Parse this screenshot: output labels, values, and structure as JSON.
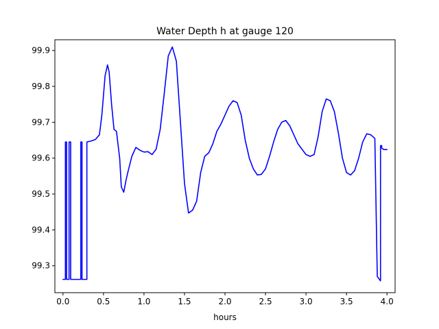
{
  "chart_data": {
    "type": "line",
    "title": "Water Depth h at gauge 120",
    "xlabel": "hours",
    "ylabel": "",
    "xlim": [
      -0.1,
      4.1
    ],
    "ylim": [
      99.225,
      99.93
    ],
    "xticks": [
      0.0,
      0.5,
      1.0,
      1.5,
      2.0,
      2.5,
      3.0,
      3.5,
      4.0
    ],
    "xtick_labels": [
      "0.0",
      "0.5",
      "1.0",
      "1.5",
      "2.0",
      "2.5",
      "3.0",
      "3.5",
      "4.0"
    ],
    "yticks": [
      99.3,
      99.4,
      99.5,
      99.6,
      99.7,
      99.8,
      99.9
    ],
    "ytick_labels": [
      "99.3",
      "99.4",
      "99.5",
      "99.6",
      "99.7",
      "99.8",
      "99.9"
    ],
    "grid": false,
    "legend": "none",
    "series": [
      {
        "color": "#0000ff",
        "x": [
          0.0,
          0.03,
          0.03,
          0.045,
          0.045,
          0.075,
          0.075,
          0.095,
          0.095,
          0.22,
          0.22,
          0.235,
          0.235,
          0.295,
          0.295,
          0.35,
          0.4,
          0.45,
          0.48,
          0.52,
          0.55,
          0.57,
          0.6,
          0.63,
          0.66,
          0.7,
          0.72,
          0.75,
          0.78,
          0.8,
          0.85,
          0.9,
          0.95,
          1.0,
          1.05,
          1.1,
          1.15,
          1.2,
          1.25,
          1.3,
          1.35,
          1.4,
          1.45,
          1.5,
          1.55,
          1.6,
          1.65,
          1.7,
          1.75,
          1.8,
          1.85,
          1.9,
          1.95,
          2.0,
          2.05,
          2.1,
          2.15,
          2.2,
          2.25,
          2.3,
          2.35,
          2.4,
          2.45,
          2.5,
          2.55,
          2.6,
          2.65,
          2.7,
          2.75,
          2.8,
          2.85,
          2.9,
          2.95,
          3.0,
          3.05,
          3.1,
          3.15,
          3.2,
          3.25,
          3.3,
          3.35,
          3.4,
          3.45,
          3.5,
          3.55,
          3.6,
          3.65,
          3.7,
          3.75,
          3.8,
          3.85,
          3.88,
          3.92,
          3.92,
          3.935,
          3.935,
          3.96,
          4.0
        ],
        "y": [
          99.262,
          99.262,
          99.645,
          99.645,
          99.262,
          99.262,
          99.645,
          99.645,
          99.262,
          99.262,
          99.645,
          99.645,
          99.262,
          99.262,
          99.645,
          99.648,
          99.652,
          99.665,
          99.72,
          99.83,
          99.86,
          99.84,
          99.75,
          99.68,
          99.675,
          99.6,
          99.52,
          99.505,
          99.54,
          99.56,
          99.605,
          99.63,
          99.622,
          99.617,
          99.618,
          99.61,
          99.625,
          99.68,
          99.78,
          99.885,
          99.91,
          99.87,
          99.7,
          99.53,
          99.447,
          99.455,
          99.48,
          99.56,
          99.605,
          99.615,
          99.64,
          99.675,
          99.695,
          99.72,
          99.745,
          99.76,
          99.755,
          99.72,
          99.65,
          99.6,
          99.57,
          99.553,
          99.555,
          99.57,
          99.605,
          99.645,
          99.68,
          99.7,
          99.705,
          99.69,
          99.665,
          99.64,
          99.625,
          99.61,
          99.605,
          99.61,
          99.66,
          99.73,
          99.765,
          99.76,
          99.73,
          99.67,
          99.6,
          99.56,
          99.553,
          99.565,
          99.6,
          99.645,
          99.668,
          99.665,
          99.655,
          99.27,
          99.258,
          99.635,
          99.635,
          99.628,
          99.624,
          99.624
        ]
      }
    ]
  }
}
